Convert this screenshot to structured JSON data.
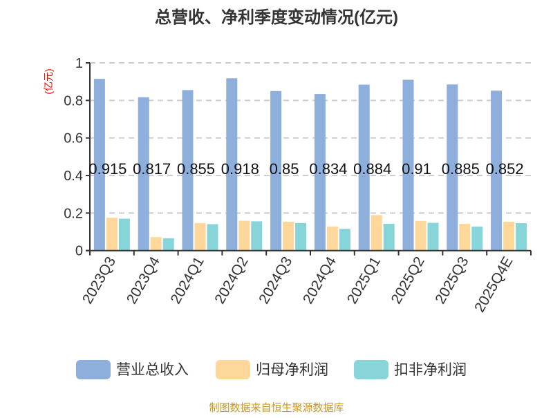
{
  "chart_data": {
    "type": "bar",
    "title": "总营收、净利季度变动情况(亿元)",
    "ylabel": "(亿元)",
    "xlabel": "",
    "ylim": [
      0,
      1
    ],
    "yticks": [
      "0",
      "0.2",
      "0.4",
      "0.6",
      "0.8",
      "1"
    ],
    "grid": true,
    "legend_position": "bottom",
    "categories": [
      "2023Q3",
      "2023Q4",
      "2024Q1",
      "2024Q2",
      "2024Q3",
      "2024Q4",
      "2025Q1",
      "2025Q2",
      "2025Q3",
      "2025Q4E"
    ],
    "series": [
      {
        "name": "营业总收入",
        "color": "#8eaedb",
        "values": [
          0.915,
          0.817,
          0.855,
          0.918,
          0.85,
          0.834,
          0.884,
          0.91,
          0.885,
          0.852
        ],
        "labels": [
          "0.915",
          "0.817",
          "0.855",
          "0.918",
          "0.85",
          "0.834",
          "0.884",
          "0.91",
          "0.885",
          "0.852"
        ]
      },
      {
        "name": "归母净利润",
        "color": "#fed89a",
        "values": [
          0.175,
          0.072,
          0.147,
          0.159,
          0.154,
          0.128,
          0.189,
          0.158,
          0.142,
          0.154
        ]
      },
      {
        "name": "扣非净利润",
        "color": "#88d5d9",
        "values": [
          0.17,
          0.066,
          0.141,
          0.156,
          0.147,
          0.116,
          0.143,
          0.148,
          0.128,
          0.146
        ]
      }
    ]
  },
  "footer": "制图数据来自恒生聚源数据库",
  "colors": {
    "title": "#333333",
    "axis": "#333333",
    "grid": "#cccccc",
    "ylabel": "#ff0000",
    "footer": "#c8961e"
  }
}
